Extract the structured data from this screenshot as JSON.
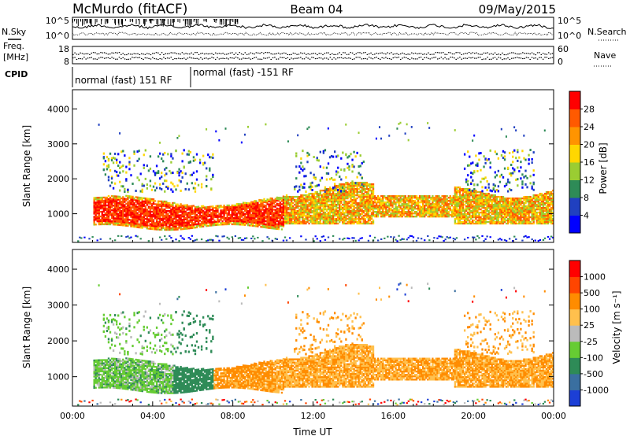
{
  "header": {
    "station": "McMurdo (fitACF)",
    "beam": "Beam 04",
    "date": "09/May/2015"
  },
  "left_labels": {
    "nsky": "N.Sky",
    "freq": "Freq.",
    "freq_unit": "[MHz]",
    "cpid": "CPID"
  },
  "right_labels": {
    "nsearch": "N.Search",
    "nave": "Nave"
  },
  "noise_panel": {
    "left_ticks": [
      "10^5",
      "10^0"
    ],
    "right_ticks": [
      "10^5",
      "10^0"
    ]
  },
  "freq_panel": {
    "left_ticks": [
      "18",
      "8"
    ],
    "right_ticks": [
      "60",
      "0"
    ]
  },
  "cpid_panel": {
    "segments": [
      {
        "label": "normal (fast) 151 RF",
        "start_hour": 0,
        "end_hour": 6
      },
      {
        "label": "normal (fast) -151 RF",
        "start_hour": 6,
        "end_hour": 24
      }
    ]
  },
  "chart_data": [
    {
      "type": "heatmap",
      "name": "power",
      "ylabel": "Slant Range [km]",
      "xlabel": "",
      "x_range_hours": [
        0,
        24
      ],
      "ylim": [
        180,
        4550
      ],
      "yticks": [
        "1000",
        "2000",
        "3000",
        "4000"
      ],
      "colorbar": {
        "label": "Power [dB]",
        "ticks": [
          "4",
          "8",
          "12",
          "16",
          "20",
          "24",
          "28"
        ],
        "colors": [
          "#0000ff",
          "#2040c0",
          "#2e8b57",
          "#9acd32",
          "#ffd700",
          "#ff9400",
          "#ff5a00",
          "#ff0000"
        ]
      }
    },
    {
      "type": "heatmap",
      "name": "velocity",
      "ylabel": "Slant Range [km]",
      "xlabel": "Time UT",
      "x_range_hours": [
        0,
        24
      ],
      "xticks": [
        "00:00",
        "04:00",
        "08:00",
        "12:00",
        "16:00",
        "20:00",
        "00:00"
      ],
      "ylim": [
        180,
        4550
      ],
      "yticks": [
        "1000",
        "2000",
        "3000",
        "4000"
      ],
      "colorbar": {
        "label": "Velocity [m s⁻¹]",
        "ticks": [
          "1000",
          "500",
          "100",
          "25",
          "-25",
          "-100",
          "-500",
          "-1000"
        ],
        "colors": [
          "#1c3fd6",
          "#3a6fa0",
          "#2e8b57",
          "#66cc33",
          "#bbbbbb",
          "#ffc04d",
          "#ff8c00",
          "#ff4500",
          "#ff0000"
        ]
      }
    }
  ]
}
